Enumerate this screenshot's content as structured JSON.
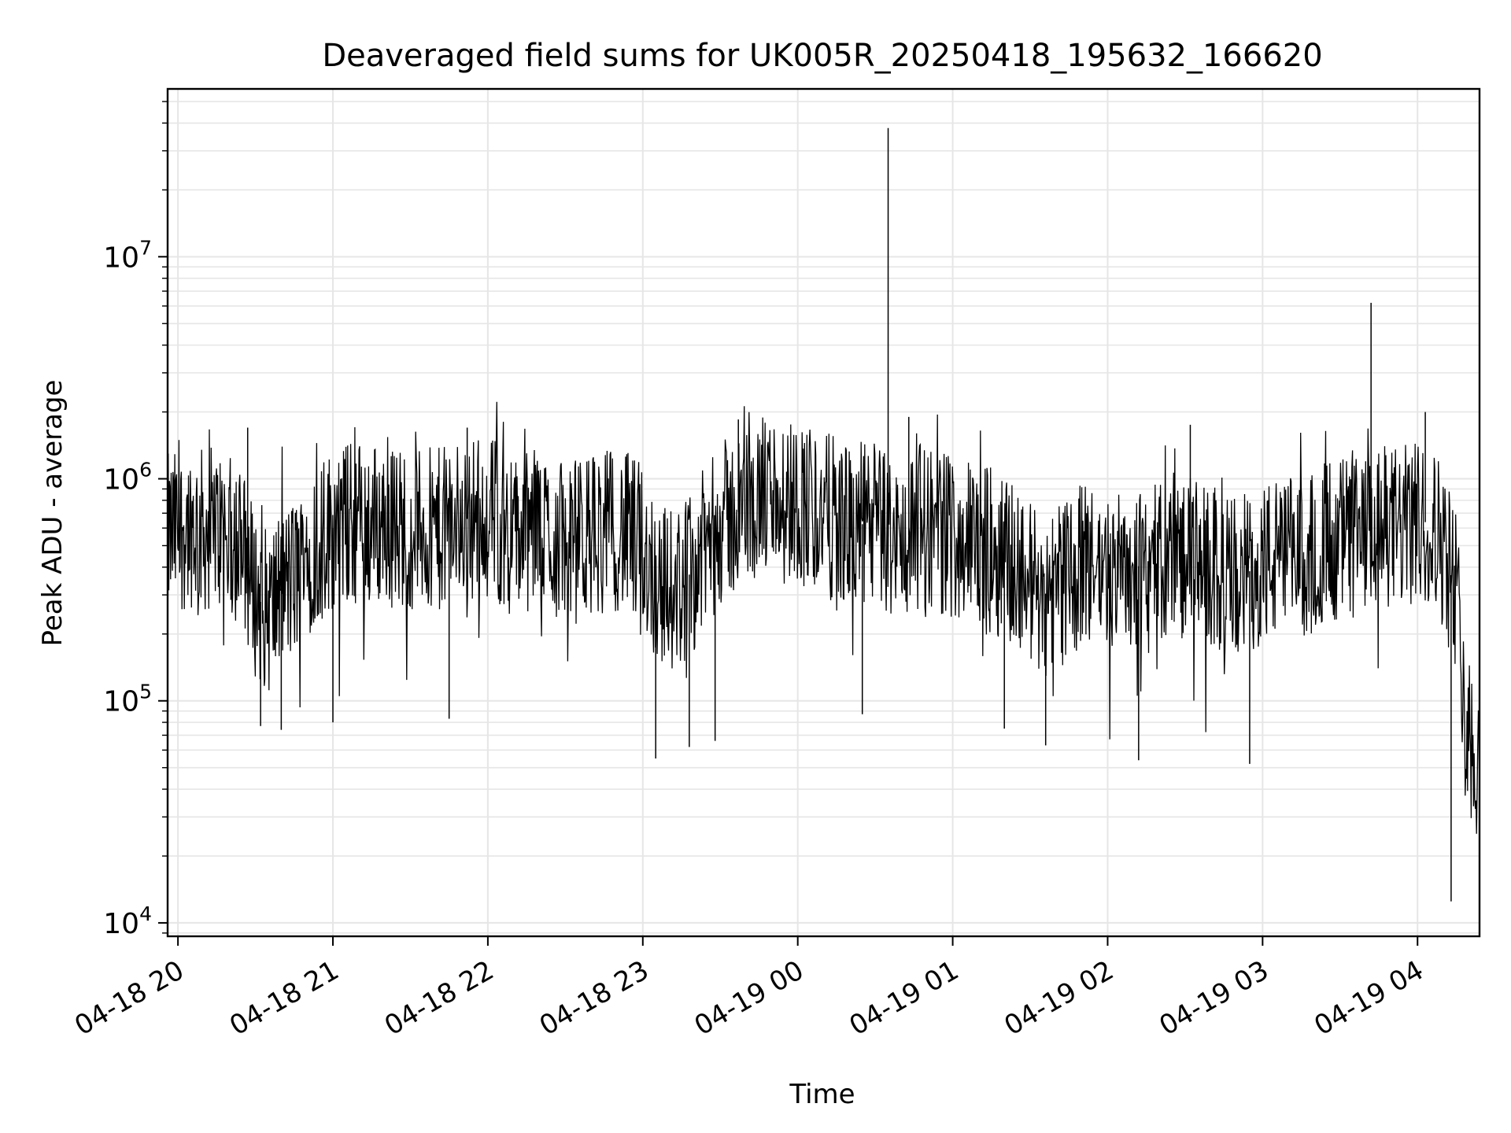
{
  "chart_data": {
    "type": "line",
    "title": "Deaveraged field sums for UK005R_20250418_195632_166620",
    "xlabel": "Time",
    "ylabel": "Peak ADU - average",
    "yscale": "log",
    "ylim": [
      8700,
      57000000
    ],
    "xlim": [
      "2025-04-18 19:56",
      "2025-04-19 04:24"
    ],
    "grid": true,
    "line_color": "#000000",
    "grid_color": "#e6e6e6",
    "x_ticks": [
      {
        "value": "2025-04-18 20:00",
        "label": "04-18 20"
      },
      {
        "value": "2025-04-18 21:00",
        "label": "04-18 21"
      },
      {
        "value": "2025-04-18 22:00",
        "label": "04-18 22"
      },
      {
        "value": "2025-04-18 23:00",
        "label": "04-18 23"
      },
      {
        "value": "2025-04-19 00:00",
        "label": "04-19 00"
      },
      {
        "value": "2025-04-19 01:00",
        "label": "04-19 01"
      },
      {
        "value": "2025-04-19 02:00",
        "label": "04-19 02"
      },
      {
        "value": "2025-04-19 03:00",
        "label": "04-19 03"
      },
      {
        "value": "2025-04-19 04:00",
        "label": "04-19 04"
      }
    ],
    "y_ticks": [
      {
        "value": 10000,
        "base": "10",
        "exp": "4"
      },
      {
        "value": 100000,
        "base": "10",
        "exp": "5"
      },
      {
        "value": 1000000,
        "base": "10",
        "exp": "6"
      },
      {
        "value": 10000000,
        "base": "10",
        "exp": "7"
      }
    ],
    "series": [
      {
        "x": [
          "2025-04-18 19:56",
          "2025-04-18 20:05",
          "2025-04-18 20:10",
          "2025-04-18 20:15",
          "2025-04-18 20:20",
          "2025-04-18 20:25",
          "2025-04-18 20:30",
          "2025-04-18 20:35",
          "2025-04-18 20:40",
          "2025-04-18 20:45",
          "2025-04-18 20:50",
          "2025-04-18 20:55",
          "2025-04-18 21:00",
          "2025-04-18 21:10",
          "2025-04-18 21:20",
          "2025-04-18 21:30",
          "2025-04-18 21:40",
          "2025-04-18 21:50",
          "2025-04-18 22:00",
          "2025-04-18 22:10",
          "2025-04-18 22:20",
          "2025-04-18 22:30",
          "2025-04-18 22:40",
          "2025-04-18 22:50",
          "2025-04-18 23:00",
          "2025-04-18 23:05",
          "2025-04-18 23:10",
          "2025-04-18 23:15",
          "2025-04-18 23:20",
          "2025-04-18 23:25",
          "2025-04-18 23:30",
          "2025-04-18 23:40",
          "2025-04-18 23:50",
          "2025-04-19 00:00",
          "2025-04-19 00:10",
          "2025-04-19 00:20",
          "2025-04-19 00:30",
          "2025-04-19 00:35",
          "2025-04-19 00:40",
          "2025-04-19 00:45",
          "2025-04-19 00:50",
          "2025-04-19 01:00",
          "2025-04-19 01:10",
          "2025-04-19 01:20",
          "2025-04-19 01:30",
          "2025-04-19 01:35",
          "2025-04-19 01:40",
          "2025-04-19 01:50",
          "2025-04-19 02:00",
          "2025-04-19 02:10",
          "2025-04-19 02:20",
          "2025-04-19 02:30",
          "2025-04-19 02:40",
          "2025-04-19 02:50",
          "2025-04-19 03:00",
          "2025-04-19 03:10",
          "2025-04-19 03:20",
          "2025-04-19 03:30",
          "2025-04-19 03:40",
          "2025-04-19 03:45",
          "2025-04-19 03:50",
          "2025-04-19 04:00",
          "2025-04-19 04:05",
          "2025-04-19 04:10",
          "2025-04-19 04:15",
          "2025-04-19 04:20",
          "2025-04-19 04:24"
        ],
        "y": [
          550000,
          620000,
          580000,
          600000,
          540000,
          500000,
          300000,
          250000,
          320000,
          350000,
          500000,
          520000,
          600000,
          650000,
          620000,
          600000,
          580000,
          650000,
          700000,
          550000,
          600000,
          500000,
          560000,
          600000,
          500000,
          350000,
          320000,
          330000,
          400000,
          500000,
          620000,
          750000,
          850000,
          800000,
          700000,
          600000,
          650000,
          550000,
          500000,
          600000,
          620000,
          550000,
          500000,
          450000,
          350000,
          300000,
          320000,
          400000,
          380000,
          400000,
          420000,
          450000,
          380000,
          350000,
          420000,
          430000,
          500000,
          550000,
          520000,
          600000,
          600000,
          620000,
          650000,
          500000,
          300000,
          70000,
          50000
        ]
      }
    ],
    "spikes": [
      {
        "x": "2025-04-18 20:27",
        "y": 1700000
      },
      {
        "x": "2025-04-18 21:52",
        "y": 1700000
      },
      {
        "x": "2025-04-18 23:37",
        "y": 1850000
      },
      {
        "x": "2025-04-19 00:35",
        "y": 38000000
      },
      {
        "x": "2025-04-19 00:43",
        "y": 1900000
      },
      {
        "x": "2025-04-19 02:32",
        "y": 1750000
      },
      {
        "x": "2025-04-19 03:42",
        "y": 6200000
      },
      {
        "x": "2025-04-19 04:03",
        "y": 2000000
      }
    ],
    "dips": [
      {
        "x": "2025-04-18 20:32",
        "y": 77000
      },
      {
        "x": "2025-04-18 20:40",
        "y": 74000
      },
      {
        "x": "2025-04-18 21:00",
        "y": 80000
      },
      {
        "x": "2025-04-18 21:45",
        "y": 83000
      },
      {
        "x": "2025-04-18 23:05",
        "y": 55000
      },
      {
        "x": "2025-04-18 23:18",
        "y": 62000
      },
      {
        "x": "2025-04-18 23:28",
        "y": 66000
      },
      {
        "x": "2025-04-19 00:25",
        "y": 87000
      },
      {
        "x": "2025-04-19 01:20",
        "y": 75000
      },
      {
        "x": "2025-04-19 01:36",
        "y": 63000
      },
      {
        "x": "2025-04-19 02:12",
        "y": 54000
      },
      {
        "x": "2025-04-19 02:55",
        "y": 52000
      },
      {
        "x": "2025-04-19 04:13",
        "y": 12500
      }
    ]
  }
}
